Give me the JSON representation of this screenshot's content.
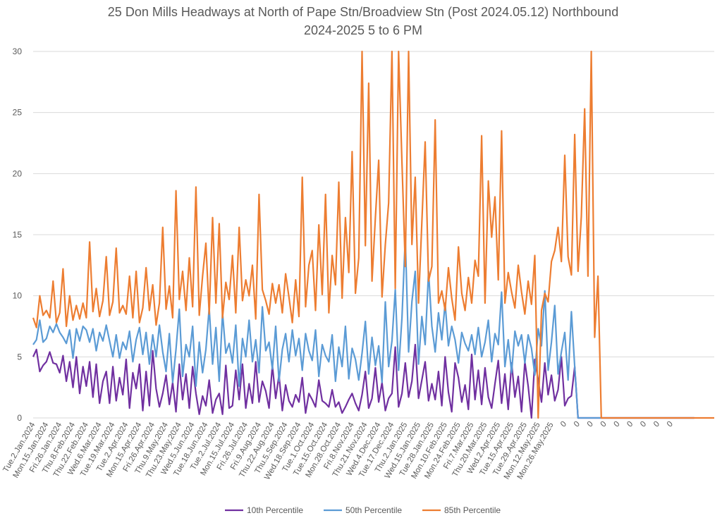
{
  "chart_data": {
    "type": "line",
    "title": "25 Don Mills Headways at North of Pape Stn/Broadview Stn (Post 2024.05.12) Northbound",
    "subtitle": "2024-2025 5 to 6 PM",
    "xlabel": "",
    "ylabel": "",
    "ylim": [
      0,
      30
    ],
    "yticks": [
      "0",
      "5",
      "10",
      "15",
      "20",
      "25",
      "30"
    ],
    "grid": true,
    "legend_position": "bottom",
    "points_per_label": 4,
    "x_labels": [
      "Tue.2.Jan.2024",
      "Mon.15.Jan.2024",
      "Fri.26.Jan.2024",
      "Thu.8.Feb.2024",
      "Thu.22.Feb.2024",
      "Wed.6.Mar.2024",
      "Tue.19.Mar.2024",
      "Tue.2.Apr.2024",
      "Mon.15.Apr.2024",
      "Fri.26.Apr.2024",
      "Thu.9.May.2024",
      "Thu.23.May.2024",
      "Wed.5.Jun.2024",
      "Tue.18.Jun.2024",
      "Tue.2.Jul.2024",
      "Mon.15.Jul.2024",
      "Fri.26.Jul.2024",
      "Fri.9.Aug.2024",
      "Thu.22.Aug.2024",
      "Thu.5.Sep.2024",
      "Wed.18.Sep.2024",
      "Tue.1.Oct.2024",
      "Tue.15.Oct.2024",
      "Mon.28.Oct.2024",
      "Fri.8.Nov.2024",
      "Thu.21.Nov.2024",
      "Wed.4.Dec.2024",
      "Tue.17.Dec.2024",
      "Thu.2.Jan.2025",
      "Wed.15.Jan.2025",
      "Tue.28.Jan.2025",
      "Mon.10.Feb.2025",
      "Mon.24.Feb.2025",
      "Fri.7.Mar.2025",
      "Thu.20.Mar.2025",
      "Wed.2.Apr.2025",
      "Tue.15.Apr.2025",
      "Tue.29.Apr.2025",
      "Mon.12.May.2025",
      "Mon.26.May.2025",
      "0",
      "0",
      "0",
      "0",
      "0",
      "0",
      "0",
      "0",
      "0"
    ],
    "series": [
      {
        "name": "10th Percentile",
        "color": "#7030a0",
        "values": [
          5.0,
          5.6,
          3.8,
          4.3,
          4.6,
          5.4,
          4.5,
          4.4,
          3.7,
          5.1,
          3.0,
          4.6,
          2.5,
          5.0,
          2.0,
          4.2,
          2.6,
          4.6,
          1.7,
          4.4,
          1.2,
          3.0,
          3.8,
          1.2,
          4.2,
          1.4,
          3.3,
          1.9,
          4.8,
          0.8,
          3.7,
          2.4,
          4.4,
          0.6,
          3.8,
          1.0,
          5.5,
          2.4,
          0.9,
          2.0,
          3.5,
          1.1,
          2.9,
          0.5,
          4.4,
          1.5,
          3.6,
          0.8,
          4.2,
          2.0,
          0.3,
          1.8,
          1.0,
          3.1,
          0.4,
          1.5,
          2.0,
          0.3,
          4.3,
          0.8,
          1.0,
          3.9,
          1.5,
          4.4,
          0.8,
          2.8,
          1.2,
          4.6,
          1.3,
          3.0,
          2.2,
          0.8,
          4.3,
          1.6,
          3.5,
          0.6,
          2.7,
          1.4,
          0.9,
          1.9,
          1.3,
          3.3,
          0.4,
          2.0,
          1.5,
          0.9,
          3.1,
          1.4,
          1.2,
          0.9,
          2.3,
          0.9,
          1.3,
          0.4,
          0.9,
          1.5,
          2.0,
          1.2,
          0.6,
          1.9,
          3.8,
          0.8,
          1.6,
          4.1,
          1.3,
          2.9,
          0.6,
          1.6,
          2.0,
          5.8,
          0.9,
          2.0,
          4.5,
          1.7,
          3.0,
          6.0,
          1.6,
          3.1,
          4.6,
          1.4,
          2.8,
          1.5,
          3.8,
          1.0,
          5.0,
          2.1,
          0.5,
          4.5,
          3.3,
          1.3,
          2.7,
          0.7,
          5.2,
          1.5,
          3.9,
          1.1,
          4.1,
          1.7,
          0.8,
          2.8,
          4.7,
          1.2,
          3.6,
          0.7,
          4.5,
          1.7,
          3.4,
          0.5,
          4.6,
          2.6,
          0.0,
          4.8,
          3.1,
          1.3,
          4.5,
          1.9,
          3.5,
          1.4,
          2.3,
          5.0,
          1.0,
          1.6,
          1.8,
          4.2,
          0,
          0,
          0,
          0,
          0,
          0,
          0,
          0,
          0,
          0,
          0,
          0,
          0,
          0,
          0,
          0,
          0,
          0,
          0,
          0,
          0,
          0,
          0,
          0,
          0,
          0,
          0,
          0,
          0,
          0,
          0,
          0,
          0,
          0,
          0,
          0
        ]
      },
      {
        "name": "50th Percentile",
        "color": "#5b9bd5",
        "values": [
          6.0,
          6.4,
          8.0,
          6.2,
          6.5,
          7.5,
          7.0,
          7.7,
          7.0,
          6.6,
          6.1,
          7.2,
          4.9,
          7.3,
          6.3,
          7.5,
          7.2,
          6.2,
          7.3,
          5.5,
          7.0,
          6.3,
          7.6,
          6.3,
          5.0,
          6.8,
          4.9,
          6.2,
          5.6,
          7.1,
          4.6,
          6.4,
          7.4,
          5.2,
          7.0,
          4.4,
          6.8,
          5.0,
          7.6,
          5.4,
          3.8,
          6.9,
          2.9,
          5.6,
          8.9,
          3.4,
          6.0,
          5.0,
          7.5,
          2.6,
          6.2,
          3.7,
          5.6,
          9.0,
          4.4,
          7.4,
          3.0,
          8.6,
          5.3,
          6.1,
          4.5,
          7.6,
          2.6,
          6.5,
          5.0,
          8.0,
          4.6,
          6.4,
          3.7,
          9.1,
          5.5,
          6.2,
          4.0,
          7.5,
          3.0,
          5.6,
          6.9,
          4.6,
          7.2,
          5.1,
          6.5,
          3.9,
          6.9,
          5.5,
          4.7,
          7.2,
          3.4,
          6.0,
          5.1,
          4.6,
          6.8,
          3.0,
          5.8,
          4.2,
          7.5,
          3.2,
          5.7,
          4.8,
          3.1,
          5.3,
          7.9,
          3.6,
          6.6,
          4.3,
          5.9,
          2.9,
          9.5,
          4.2,
          6.3,
          10.5,
          3.9,
          8.2,
          14.8,
          5.4,
          9.5,
          12.0,
          4.4,
          8.3,
          6.0,
          12.0,
          7.5,
          5.4,
          8.6,
          6.4,
          9.4,
          5.9,
          7.5,
          6.4,
          4.5,
          7.0,
          6.1,
          5.5,
          6.8,
          5.2,
          7.4,
          5.0,
          6.2,
          8.0,
          4.6,
          6.9,
          6.0,
          10.3,
          4.2,
          6.4,
          3.7,
          7.1,
          5.9,
          6.8,
          4.5,
          6.8,
          5.7,
          3.5,
          7.3,
          5.9,
          10.4,
          3.9,
          6.2,
          9.2,
          3.6,
          5.4,
          7.0,
          3.1,
          8.7,
          4.2,
          0,
          0,
          0,
          0,
          0,
          0,
          0,
          0,
          0,
          0,
          0,
          0,
          0,
          0,
          0,
          0,
          0,
          0,
          0,
          0,
          0,
          0,
          0,
          0,
          0,
          0,
          0,
          0,
          0,
          0,
          0,
          0,
          0,
          0,
          0,
          0
        ]
      },
      {
        "name": "85th Percentile",
        "color": "#ed7d31",
        "values": [
          8.2,
          7.4,
          10.0,
          8.4,
          8.8,
          8.2,
          11.2,
          7.8,
          8.6,
          12.2,
          7.5,
          10.0,
          8.0,
          9.2,
          8.1,
          9.4,
          8.2,
          14.4,
          8.7,
          10.6,
          8.3,
          9.6,
          13.2,
          8.4,
          9.5,
          13.9,
          8.6,
          9.2,
          8.5,
          11.6,
          8.2,
          12.0,
          7.8,
          9.0,
          12.3,
          8.8,
          10.9,
          7.6,
          9.4,
          15.6,
          8.9,
          10.8,
          8.2,
          18.6,
          9.7,
          12.0,
          8.8,
          13.1,
          9.1,
          18.9,
          8.4,
          11.6,
          14.3,
          8.5,
          16.4,
          9.4,
          15.9,
          8.2,
          11.1,
          9.7,
          13.3,
          8.6,
          15.6,
          9.6,
          11.3,
          10.0,
          12.5,
          8.1,
          18.3,
          10.5,
          9.6,
          8.5,
          11.0,
          9.4,
          10.9,
          8.6,
          11.8,
          9.9,
          7.8,
          11.3,
          8.3,
          19.7,
          9.1,
          12.5,
          13.7,
          8.8,
          15.8,
          10.1,
          18.3,
          8.6,
          13.3,
          10.9,
          19.3,
          9.8,
          16.4,
          11.9,
          21.8,
          10.2,
          13.1,
          30.0,
          14.1,
          27.4,
          11.2,
          16.4,
          21.1,
          9.9,
          14.2,
          17.6,
          30.0,
          10.6,
          30.0,
          20.9,
          12.4,
          30.0,
          14.2,
          19.7,
          9.4,
          16.0,
          22.6,
          11.2,
          12.4,
          24.4,
          9.4,
          10.4,
          8.8,
          12.3,
          9.8,
          8.0,
          14.0,
          10.2,
          8.8,
          11.5,
          9.4,
          12.9,
          11.6,
          23.1,
          9.4,
          19.4,
          14.8,
          18.1,
          11.3,
          23.5,
          9.4,
          11.9,
          10.3,
          9.0,
          12.5,
          10.3,
          8.5,
          11.2,
          9.3,
          13.3,
          0.0,
          8.8,
          10.2,
          9.5,
          12.8,
          13.7,
          15.6,
          12.8,
          21.5,
          13.2,
          11.7,
          23.2,
          12.0,
          16.5,
          25.3,
          11.6,
          30.0,
          6.6,
          11.6,
          0,
          0,
          0,
          0,
          0,
          0,
          0,
          0,
          0,
          0,
          0,
          0,
          0,
          0,
          0,
          0,
          0,
          0,
          0,
          0,
          0,
          0,
          0,
          0,
          0,
          0,
          0,
          0,
          0,
          0,
          0,
          0,
          0,
          0,
          0
        ]
      }
    ]
  }
}
